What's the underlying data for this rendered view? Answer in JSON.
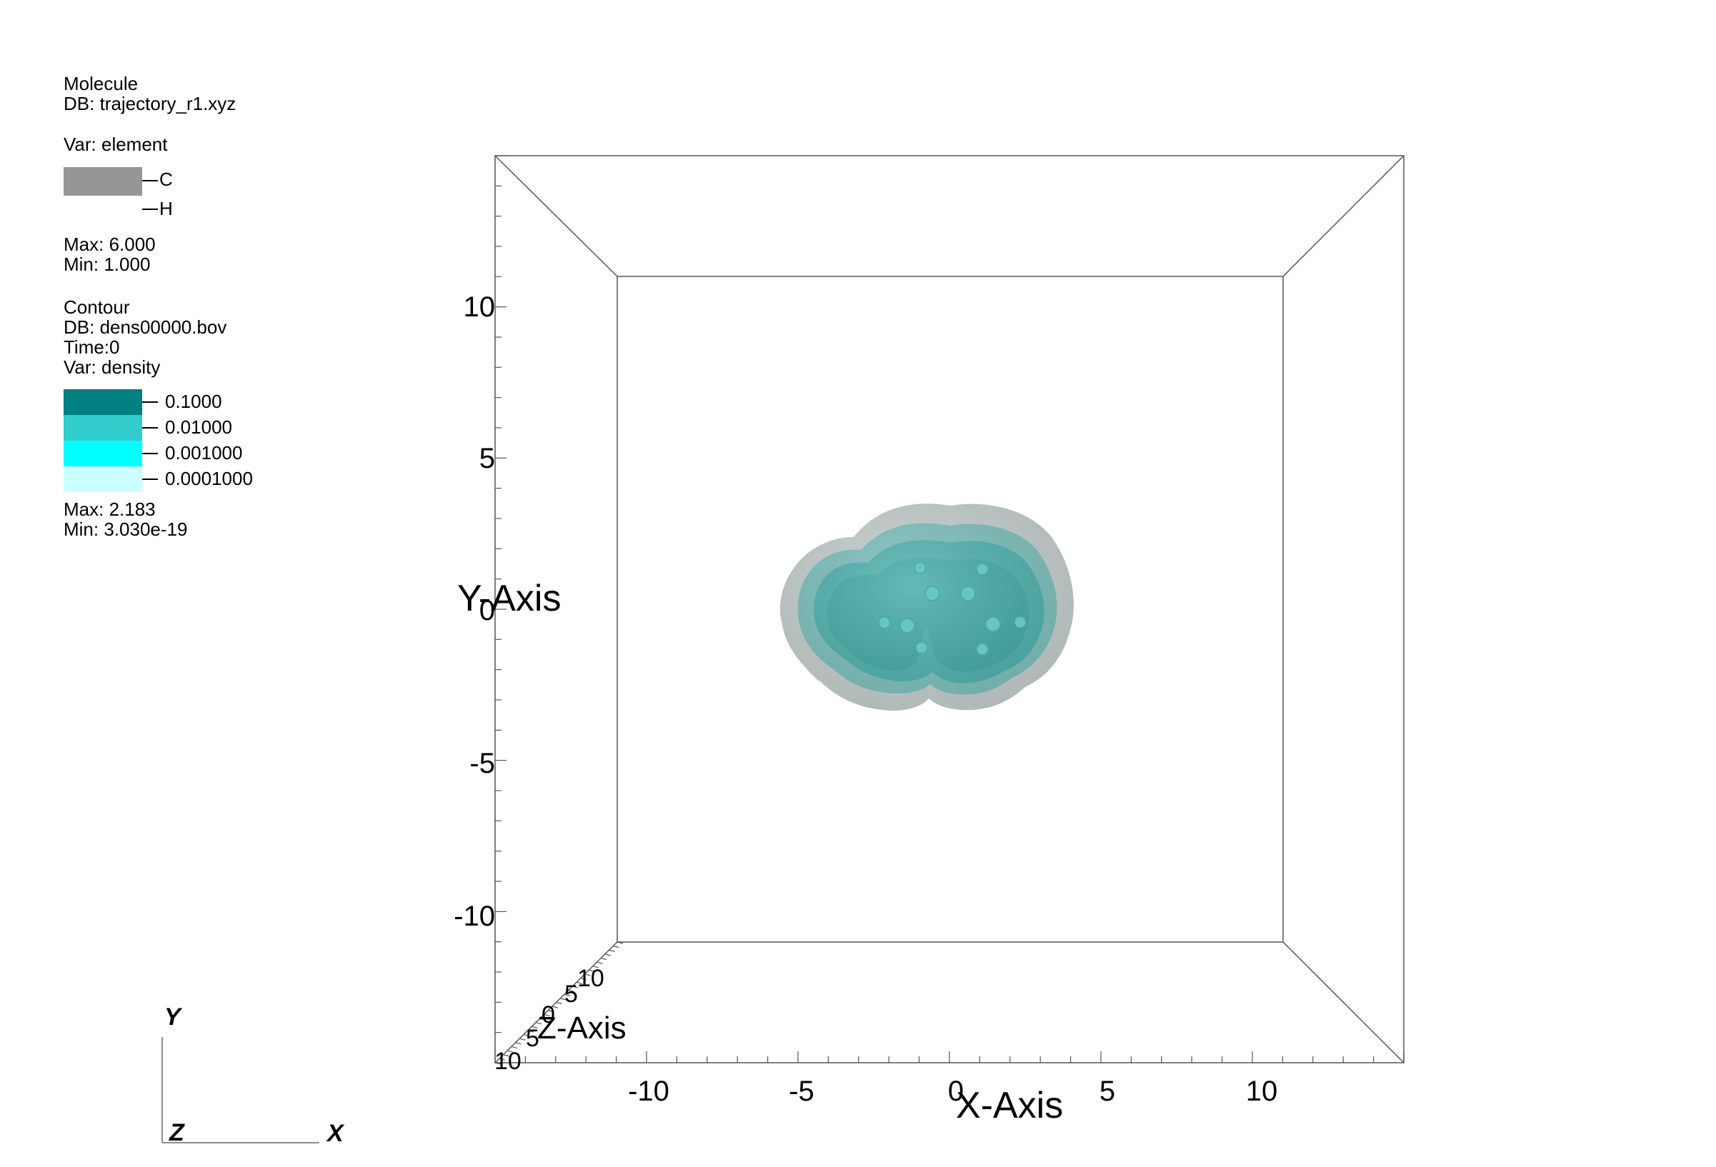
{
  "legend": {
    "molecule": {
      "plot_name": "Molecule",
      "db": "DB: trajectory_r1.xyz",
      "var": "Var: element",
      "entries": [
        {
          "label": "C",
          "color": "#969696"
        },
        {
          "label": "H",
          "color": "#ffffff"
        }
      ],
      "max": "Max:  6.000",
      "min": "Min:  1.000"
    },
    "contour": {
      "plot_name": "Contour",
      "db": "DB: dens00000.bov",
      "time": "Time:0",
      "var": "Var: density",
      "levels": [
        {
          "label": "0.1000",
          "color": "#008080"
        },
        {
          "label": "0.01000",
          "color": "#33cccc"
        },
        {
          "label": "0.001000",
          "color": "#00ffff"
        },
        {
          "label": "0.0001000",
          "color": "#ccffff"
        }
      ],
      "max": "Max:  2.183",
      "min": "Min:  3.030e-19"
    }
  },
  "chart_data": {
    "type": "contour",
    "axes": {
      "x": {
        "label": "X-Axis",
        "range": [
          -15,
          15
        ],
        "tick_labels": [
          "-10",
          "-5",
          "0",
          "5",
          "10"
        ],
        "ticks": [
          -10,
          -5,
          0,
          5,
          10
        ]
      },
      "y": {
        "label": "Y-Axis",
        "range": [
          -15,
          15
        ],
        "tick_labels": [
          "10",
          "5",
          "0",
          "-5",
          "-10"
        ],
        "ticks": [
          10,
          5,
          0,
          -5,
          -10
        ]
      },
      "z": {
        "label": "Z-Axis",
        "range": [
          -15,
          15
        ],
        "tick_labels": [
          "10",
          "5",
          "0",
          "5",
          "10"
        ]
      }
    },
    "isosurfaces": [
      {
        "level": 0.0001,
        "color": "#c8d2d0"
      },
      {
        "level": 0.001,
        "color": "#7ec2bf"
      },
      {
        "level": 0.01,
        "color": "#4fb2ae"
      },
      {
        "level": 0.1,
        "color": "#43aaa6"
      }
    ],
    "triad": {
      "x": "X",
      "y": "Y",
      "z": "Z"
    }
  }
}
